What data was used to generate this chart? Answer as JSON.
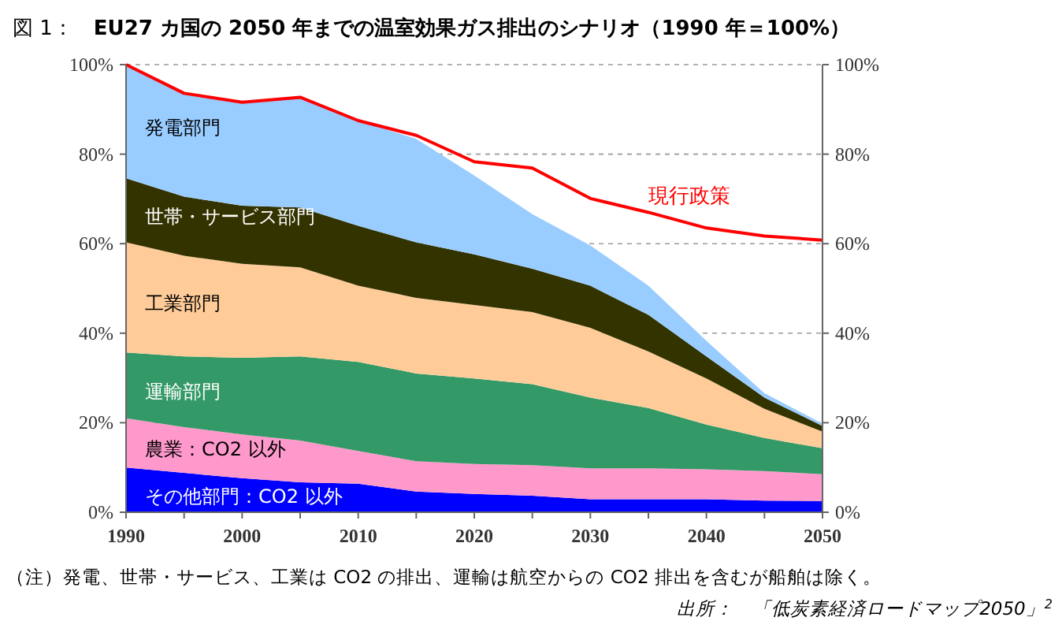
{
  "chart_data": {
    "type": "area",
    "stacked": true,
    "title": "図 1：　**EU27 カ国の 2050 年までの温室効果ガス排出のシナリオ（1990 年＝100%）**",
    "x": [
      1990,
      1995,
      2000,
      2005,
      2010,
      2015,
      2020,
      2025,
      2030,
      2035,
      2040,
      2045,
      2050
    ],
    "series": [
      {
        "name": "その他部門：CO2 以外",
        "color": "#0000ff",
        "values": [
          10,
          8.8,
          7.6,
          6.7,
          6.4,
          4.6,
          4.1,
          3.7,
          2.9,
          2.9,
          2.9,
          2.6,
          2.5
        ]
      },
      {
        "name": "農業：CO2 以外",
        "color": "#ff99cc",
        "values": [
          11,
          10.2,
          9.8,
          9.3,
          7.3,
          6.8,
          6.7,
          6.8,
          6.9,
          6.9,
          6.7,
          6.6,
          6
        ]
      },
      {
        "name": "運輸部門",
        "color": "#339966",
        "values": [
          14.7,
          15.8,
          17.1,
          18.8,
          19.9,
          19.6,
          19.1,
          18.1,
          15.8,
          13.5,
          10,
          7.4,
          5.8
        ]
      },
      {
        "name": "工業部門",
        "color": "#ffcc99",
        "values": [
          24.6,
          22.5,
          21,
          19.9,
          17,
          16.9,
          16.4,
          16.1,
          15.6,
          12.6,
          10.3,
          6.5,
          3.7
        ]
      },
      {
        "name": "世帯・サービス部門",
        "color": "#333300",
        "values": [
          14.3,
          13.2,
          13,
          13.4,
          13.4,
          12.4,
          11.3,
          9.7,
          9.4,
          8.2,
          4.9,
          2.5,
          1.3
        ]
      },
      {
        "name": "発電部門",
        "color": "#99ccff",
        "values": [
          25.4,
          23.1,
          23.3,
          24.6,
          23.5,
          23.1,
          17.6,
          12.2,
          9,
          6.5,
          3.5,
          1,
          0.5
        ]
      },
      {
        "name": "現行政策",
        "type": "line",
        "color": "#ff0000",
        "values": [
          100,
          93.6,
          91.6,
          92.7,
          87.5,
          84.2,
          78.3,
          76.9,
          70.1,
          67,
          63.5,
          61.7,
          60.8
        ]
      }
    ],
    "xlim": [
      1990,
      2050
    ],
    "xticks": [
      1990,
      {
        "value": 1995,
        "label": null
      },
      2000,
      {
        "value": 2005,
        "label": null
      },
      2010,
      {
        "value": 2015,
        "label": null
      },
      2020,
      {
        "value": 2025,
        "label": null
      },
      2030,
      {
        "value": 2035,
        "label": null
      },
      2040,
      {
        "value": 2045,
        "label": null
      },
      2050
    ],
    "ylim": [
      0,
      100
    ],
    "yticks": [
      {
        "value": 0,
        "label": "0%"
      },
      {
        "value": 20,
        "label": "20%"
      },
      {
        "value": 40,
        "label": "40%"
      },
      {
        "value": 60,
        "label": "60%"
      },
      {
        "value": 80,
        "label": "80%"
      },
      {
        "value": 100,
        "label": "100%"
      }
    ],
    "y2lim": [
      0,
      100
    ],
    "y2ticks": [
      {
        "value": 0,
        "label": "0%"
      },
      {
        "value": 20,
        "label": "20%"
      },
      {
        "value": 40,
        "label": "40%"
      },
      {
        "value": 60,
        "label": "60%"
      },
      {
        "value": 80,
        "label": "80%"
      },
      {
        "value": 100,
        "label": "100%"
      }
    ],
    "grid": "y",
    "annotations": [
      "（注）発電、世帯・サービス、工業は CO2 の排出、運輸は航空からの CO2 排出を含むが船舶は除く。",
      "出所：　「低炭素経済ロードマップ2050」$^{2}$"
    ]
  }
}
